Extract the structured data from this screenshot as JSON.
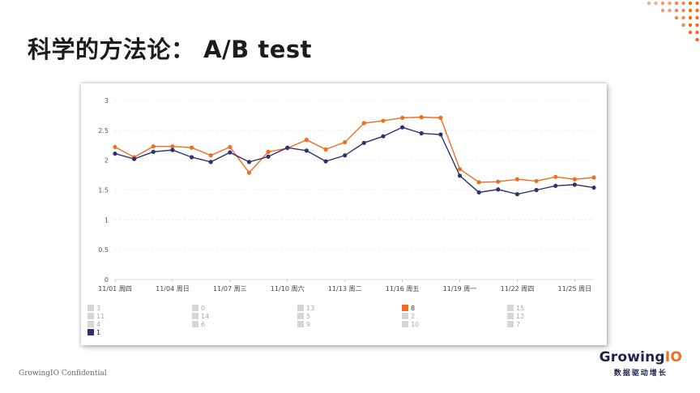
{
  "slide": {
    "title": "科学的方法论： A/B test"
  },
  "footer": {
    "confidential": "GrowingIO Confidential"
  },
  "brand": {
    "logo_main": "Growing",
    "logo_io": "IO",
    "tagline": "数据驱动增长"
  },
  "colors": {
    "series_8": "#f06d1f",
    "series_1": "#2e3370",
    "accent": "#f06d1f",
    "legend_inactive": "#d6d6d6"
  },
  "chart_data": {
    "type": "line",
    "x": [
      "11/01 周四",
      "11/02",
      "11/03",
      "11/04 周日",
      "11/05",
      "11/06",
      "11/07 周三",
      "11/08",
      "11/09",
      "11/10 周六",
      "11/11",
      "11/12",
      "11/13 周二",
      "11/14",
      "11/15",
      "11/16 周五",
      "11/17",
      "11/18",
      "11/19 周一",
      "11/20",
      "11/21",
      "11/22 周四",
      "11/23",
      "11/24",
      "11/25 周日",
      "11/26"
    ],
    "tick_labels": [
      "11/01 周四",
      "11/04 周日",
      "11/07 周三",
      "11/10 周六",
      "11/13 周二",
      "11/16 周五",
      "11/19 周一",
      "11/22 周四",
      "11/25 周日"
    ],
    "y_ticks": [
      "0",
      "0.5",
      "1",
      "1.5",
      "2",
      "2.5",
      "3"
    ],
    "ylim": [
      0,
      3
    ],
    "grid": true,
    "legend_placement": "bottom",
    "series": [
      {
        "name": "8",
        "color": "#f06d1f",
        "values": [
          2.22,
          2.05,
          2.23,
          2.23,
          2.21,
          2.08,
          2.22,
          1.79,
          2.14,
          2.2,
          2.34,
          2.18,
          2.3,
          2.62,
          2.66,
          2.71,
          2.72,
          2.71,
          1.85,
          1.63,
          1.64,
          1.68,
          1.65,
          1.72,
          1.68,
          1.71
        ]
      },
      {
        "name": "1",
        "color": "#2e3370",
        "values": [
          2.11,
          2.02,
          2.14,
          2.17,
          2.05,
          1.97,
          2.13,
          1.97,
          2.06,
          2.21,
          2.16,
          1.98,
          2.08,
          2.29,
          2.4,
          2.55,
          2.45,
          2.43,
          1.74,
          1.46,
          1.51,
          1.43,
          1.5,
          1.57,
          1.59,
          1.54
        ]
      }
    ],
    "legend": [
      {
        "label": "3",
        "active": false
      },
      {
        "label": "0",
        "active": false
      },
      {
        "label": "13",
        "active": false
      },
      {
        "label": "8",
        "active": true,
        "color": "#f06d1f"
      },
      {
        "label": "15",
        "active": false
      },
      {
        "label": "11",
        "active": false
      },
      {
        "label": "14",
        "active": false
      },
      {
        "label": "5",
        "active": false
      },
      {
        "label": "2",
        "active": false
      },
      {
        "label": "12",
        "active": false
      },
      {
        "label": "4",
        "active": false
      },
      {
        "label": "6",
        "active": false
      },
      {
        "label": "9",
        "active": false
      },
      {
        "label": "10",
        "active": false
      },
      {
        "label": "7",
        "active": false
      },
      {
        "label": "1",
        "active": true,
        "color": "#2e3370"
      }
    ]
  }
}
